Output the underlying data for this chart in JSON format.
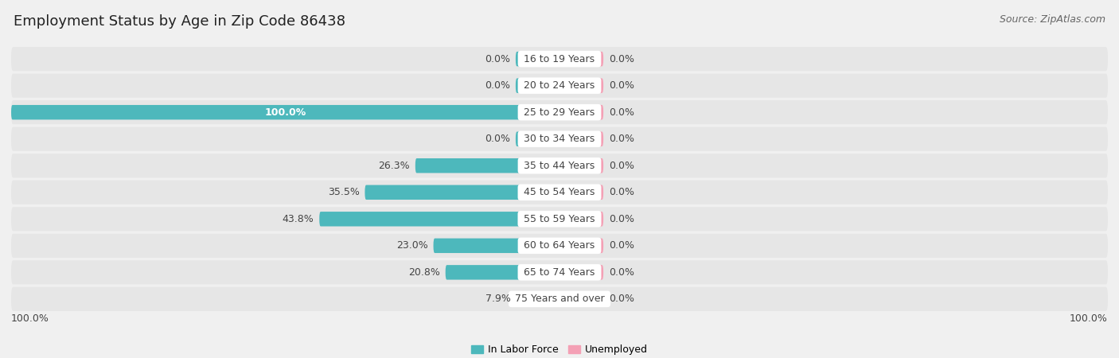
{
  "title": "Employment Status by Age in Zip Code 86438",
  "source": "Source: ZipAtlas.com",
  "categories": [
    "16 to 19 Years",
    "20 to 24 Years",
    "25 to 29 Years",
    "30 to 34 Years",
    "35 to 44 Years",
    "45 to 54 Years",
    "55 to 59 Years",
    "60 to 64 Years",
    "65 to 74 Years",
    "75 Years and over"
  ],
  "labor_force": [
    0.0,
    0.0,
    100.0,
    0.0,
    26.3,
    35.5,
    43.8,
    23.0,
    20.8,
    7.9
  ],
  "unemployed": [
    0.0,
    0.0,
    0.0,
    0.0,
    0.0,
    0.0,
    0.0,
    0.0,
    0.0,
    0.0
  ],
  "labor_force_color": "#4db8bc",
  "unemployed_color": "#f4a0b5",
  "background_color": "#f0f0f0",
  "row_bg_color": "#e6e6e6",
  "center_label_bg": "#ffffff",
  "text_dark": "#444444",
  "text_white": "#ffffff",
  "legend_labor": "In Labor Force",
  "legend_unemployed": "Unemployed",
  "title_fontsize": 13,
  "source_fontsize": 9,
  "label_fontsize": 9,
  "bar_height": 0.55,
  "stub_size": 8.0,
  "max_val": 100.0,
  "axis_bottom_label": "100.0%"
}
